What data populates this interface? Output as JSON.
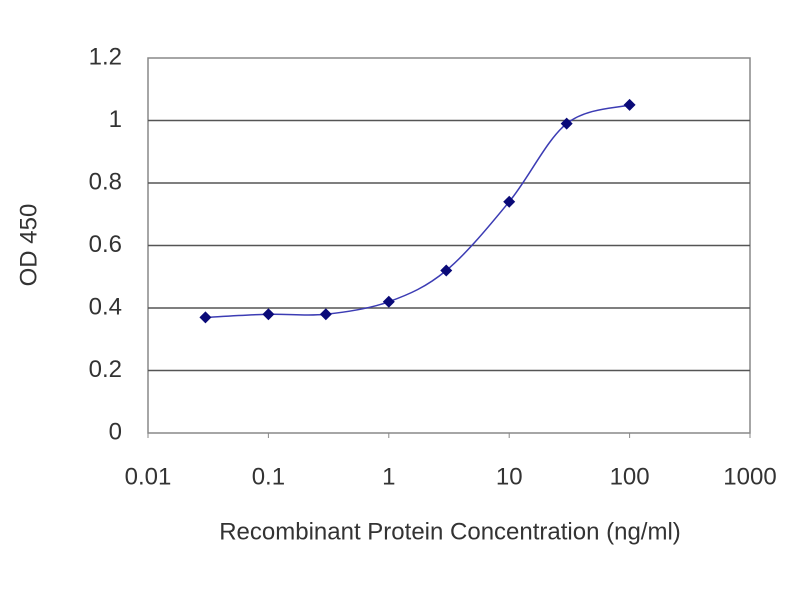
{
  "chart_data": {
    "type": "line",
    "x_label": "Recombinant Protein Concentration (ng/ml)",
    "y_label": "OD 450",
    "x": [
      0.03,
      0.1,
      0.3,
      1,
      3,
      10,
      30,
      100
    ],
    "values": [
      0.37,
      0.38,
      0.38,
      0.42,
      0.52,
      0.74,
      0.99,
      1.05
    ],
    "color": "#3c3cb4",
    "marker_color": "#0a0a78",
    "xscale": "log",
    "xlim": [
      0.01,
      1000
    ],
    "xticks": [
      0.01,
      0.1,
      1,
      10,
      100,
      1000
    ],
    "ylim": [
      0,
      1.2
    ],
    "yticks": [
      0,
      0.2,
      0.4,
      0.6,
      0.8,
      1,
      1.2
    ],
    "grid": true
  }
}
